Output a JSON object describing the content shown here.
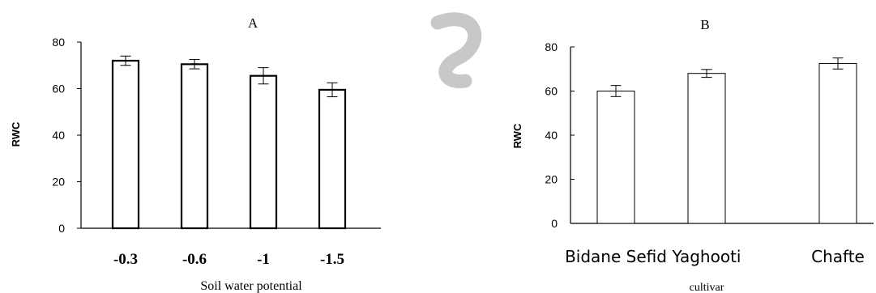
{
  "logo": {
    "icon": "stylized-e-logo",
    "color": "#c8c8c8"
  },
  "chart_data": [
    {
      "type": "bar",
      "title": "A",
      "xlabel": "Soil water potential",
      "ylabel": "RWC",
      "categories": [
        "-0.3",
        "-0.6",
        "-1",
        "-1.5"
      ],
      "values": [
        72,
        70.5,
        65.5,
        59.5
      ],
      "errors": [
        2,
        2,
        3.5,
        3
      ],
      "ylim": [
        0,
        80
      ],
      "yticks": [
        "0",
        "20",
        "40",
        "60",
        "80"
      ],
      "grid": false
    },
    {
      "type": "bar",
      "title": "B",
      "xlabel": "cultivar",
      "ylabel": "RWC",
      "categories": [
        "Bidane Sefid",
        "Yaghooti",
        "Chafte"
      ],
      "values": [
        60,
        68,
        72.5
      ],
      "errors": [
        2.5,
        1.8,
        2.5
      ],
      "ylim": [
        0,
        80
      ],
      "yticks": [
        "0",
        "20",
        "40",
        "60",
        "80"
      ],
      "grid": false
    }
  ]
}
